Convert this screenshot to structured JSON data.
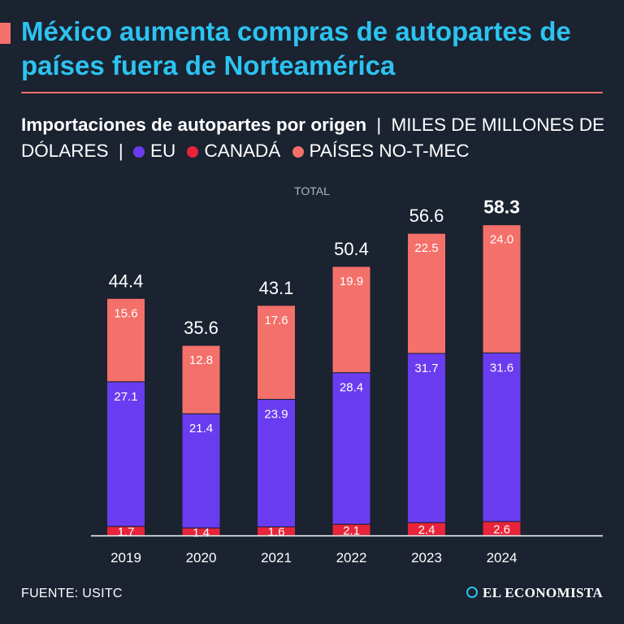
{
  "header": {
    "title": "México aumenta compras de autopartes de países fuera de Norteamérica"
  },
  "subtitle": {
    "bold": "Importaciones de autopartes por origen",
    "units": "MILES DE MILLONES DE DÓLARES",
    "separator": "|"
  },
  "legend": [
    {
      "label": "EU",
      "color": "#6a3cf0"
    },
    {
      "label": "CANADÁ",
      "color": "#e8243a"
    },
    {
      "label": "PAÍSES NO-T-MEC",
      "color": "#f4706a"
    }
  ],
  "chart_data": {
    "type": "bar",
    "stacked": true,
    "total_label": "TOTAL",
    "categories": [
      "2019",
      "2020",
      "2021",
      "2022",
      "2023",
      "2024"
    ],
    "series": [
      {
        "name": "CANADÁ",
        "color": "#e8243a",
        "values": [
          1.7,
          1.4,
          1.6,
          2.1,
          2.4,
          2.6
        ]
      },
      {
        "name": "EU",
        "color": "#6a3cf0",
        "values": [
          27.1,
          21.4,
          23.9,
          28.4,
          31.7,
          31.6
        ]
      },
      {
        "name": "PAÍSES NO-T-MEC",
        "color": "#f4706a",
        "values": [
          15.6,
          12.8,
          17.6,
          19.9,
          22.5,
          24.0
        ]
      }
    ],
    "totals": [
      44.4,
      35.6,
      43.1,
      50.4,
      56.6,
      58.3
    ],
    "value_labels": {
      "CANADÁ": [
        "1.7",
        "1.4",
        "1.6",
        "2.1",
        "2.4",
        "2.6"
      ],
      "EU": [
        "27.1",
        "21.4",
        "23.9",
        "28.4",
        "31.7",
        "31.6"
      ],
      "PAÍSES NO-T-MEC": [
        "15.6",
        "12.8",
        "17.6",
        "19.9",
        "22.5",
        "24.0"
      ]
    },
    "total_labels": [
      "44.4",
      "35.6",
      "43.1",
      "50.4",
      "56.6",
      "58.3"
    ],
    "highlight_total_index": 5,
    "ylim": [
      0,
      58.3
    ],
    "grid": false
  },
  "footer": {
    "source": "FUENTE: USITC",
    "brand": "EL ECONOMISTA"
  }
}
